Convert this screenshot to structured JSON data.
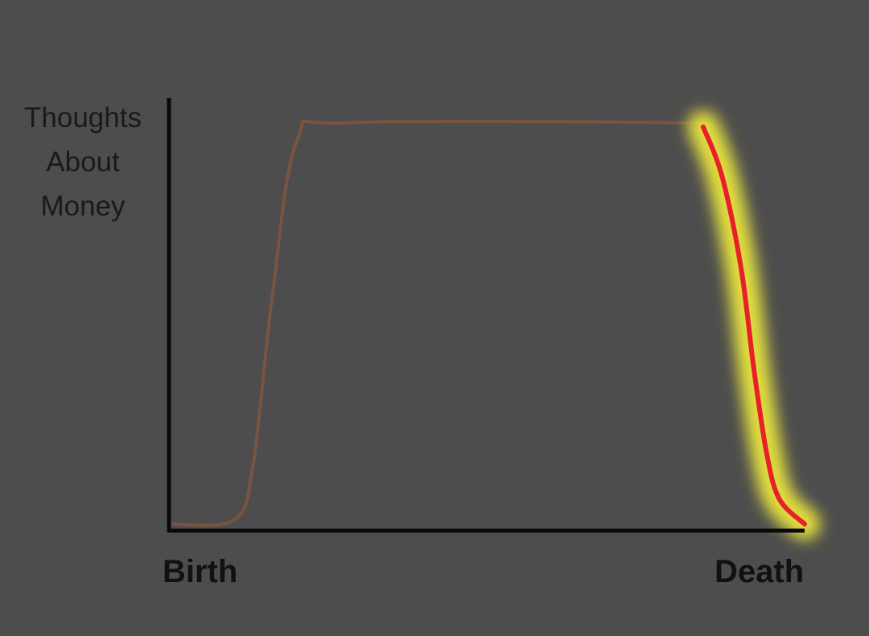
{
  "chart_data": {
    "type": "line",
    "ylabel": [
      "Thoughts",
      "About",
      "Money"
    ],
    "x_start_label": "Birth",
    "x_end_label": "Death",
    "ylim": [
      0,
      1
    ],
    "xlim": [
      0,
      1
    ],
    "series": [
      {
        "style": "muted",
        "x": [
          0.0,
          0.1,
          0.13,
          0.16,
          0.2,
          0.28,
          0.8,
          0.84
        ],
        "values": [
          0.01,
          0.02,
          0.15,
          0.55,
          0.93,
          0.97,
          0.97,
          0.96
        ]
      },
      {
        "style": "highlighted",
        "x": [
          0.84,
          0.87,
          0.9,
          0.92,
          0.94,
          0.96,
          1.0
        ],
        "values": [
          0.96,
          0.84,
          0.62,
          0.38,
          0.18,
          0.07,
          0.01
        ]
      }
    ]
  },
  "colors": {
    "background": "#4d4d4d",
    "axis": "#0a0a0a",
    "muted_line": "#7a5440",
    "highlight_line": "#e8202a",
    "highlight_glow": "#f2ee3c"
  }
}
